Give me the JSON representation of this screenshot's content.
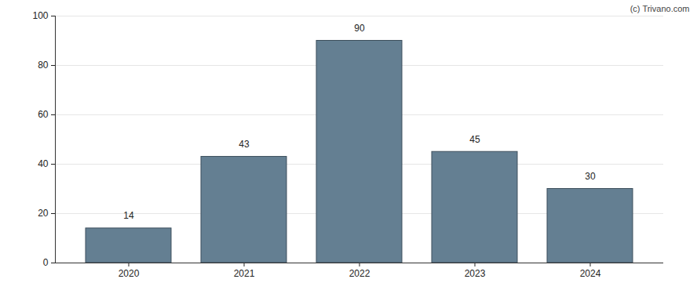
{
  "chart_data": {
    "type": "bar",
    "categories": [
      "2020",
      "2021",
      "2022",
      "2023",
      "2024"
    ],
    "values": [
      14,
      43,
      90,
      45,
      30
    ],
    "color": "#647f92",
    "ylim": [
      0,
      100
    ],
    "yticks": [
      0,
      20,
      40,
      60,
      80,
      100
    ],
    "grid": true,
    "data_labels": true,
    "annotations": [
      "(c) Trivano.com"
    ]
  }
}
